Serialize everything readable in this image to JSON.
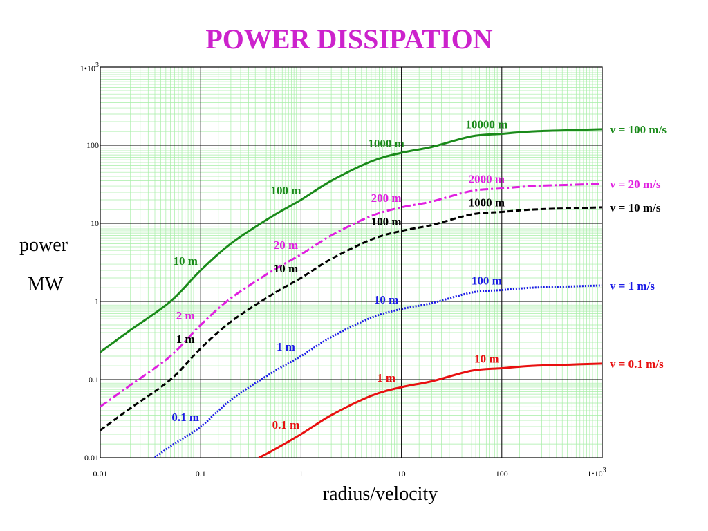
{
  "chart_data": {
    "type": "line",
    "title": "POWER DISSIPATION",
    "title_color": "#cc22cc",
    "xlabel": "radius/velocity",
    "ylabel_lines": [
      "power",
      "MW"
    ],
    "x_scale": "log",
    "y_scale": "log",
    "xlim": [
      0.01,
      1000
    ],
    "ylim": [
      0.01,
      1000
    ],
    "grid": true,
    "grid_minor_color": "#a6eea6",
    "grid_major_color": "#000000",
    "x_ticks": [
      {
        "value": 0.01,
        "label": "0.01"
      },
      {
        "value": 0.1,
        "label": "0.1"
      },
      {
        "value": 1,
        "label": "1"
      },
      {
        "value": 10,
        "label": "10"
      },
      {
        "value": 100,
        "label": "100"
      },
      {
        "value": 1000,
        "label": "1•10",
        "sup": "3"
      }
    ],
    "y_ticks": [
      {
        "value": 0.01,
        "label": "0.01"
      },
      {
        "value": 0.1,
        "label": "0.1"
      },
      {
        "value": 1,
        "label": "1"
      },
      {
        "value": 10,
        "label": "10"
      },
      {
        "value": 100,
        "label": "100"
      },
      {
        "value": 1000,
        "label": "1•10",
        "sup": "3"
      }
    ],
    "series": [
      {
        "name": "v = 100 m/s",
        "v": 100,
        "color": "#1a8a1a",
        "dash": "solid",
        "x": [
          0.01,
          0.02,
          0.05,
          0.1,
          0.2,
          0.5,
          1,
          2,
          5,
          10,
          20,
          50,
          100,
          200,
          500,
          1000
        ],
        "y": [
          0.225,
          0.43,
          1.0,
          2.5,
          5.5,
          12,
          20,
          35,
          62,
          80,
          95,
          130,
          140,
          150,
          156,
          160
        ],
        "annotations": [
          {
            "text": "10 m",
            "x": 0.1,
            "y": 2.5
          },
          {
            "text": "100 m",
            "x": 1,
            "y": 20
          },
          {
            "text": "1000 m",
            "x": 10,
            "y": 80
          },
          {
            "text": "10000 m",
            "x": 100,
            "y": 140
          }
        ]
      },
      {
        "name": "v = 20 m/s",
        "v": 20,
        "color": "#e020e0",
        "dash": "dashdot",
        "x": [
          0.01,
          0.02,
          0.05,
          0.1,
          0.2,
          0.5,
          1,
          2,
          5,
          10,
          20,
          50,
          100,
          200,
          500,
          1000
        ],
        "y": [
          0.045,
          0.085,
          0.2,
          0.5,
          1.1,
          2.4,
          4,
          7,
          12.4,
          16,
          19,
          26,
          28,
          30,
          31.2,
          32
        ],
        "annotations": [
          {
            "text": "2 m",
            "x": 0.1,
            "y": 0.5
          },
          {
            "text": "20 m",
            "x": 1,
            "y": 4
          },
          {
            "text": "200 m",
            "x": 10,
            "y": 16
          },
          {
            "text": "2000 m",
            "x": 100,
            "y": 28
          }
        ]
      },
      {
        "name": "v = 10 m/s",
        "v": 10,
        "color": "#000000",
        "dash": "dashed",
        "x": [
          0.01,
          0.02,
          0.05,
          0.1,
          0.2,
          0.5,
          1,
          2,
          5,
          10,
          20,
          50,
          100,
          200,
          500,
          1000
        ],
        "y": [
          0.0225,
          0.043,
          0.1,
          0.25,
          0.55,
          1.2,
          2,
          3.5,
          6.2,
          8,
          9.5,
          13,
          14,
          15,
          15.6,
          16
        ],
        "annotations": [
          {
            "text": "1 m",
            "x": 0.1,
            "y": 0.25
          },
          {
            "text": "10 m",
            "x": 1,
            "y": 2
          },
          {
            "text": "100 m",
            "x": 10,
            "y": 8
          },
          {
            "text": "1000 m",
            "x": 100,
            "y": 14
          }
        ]
      },
      {
        "name": "v = 1 m/s",
        "v": 1,
        "color": "#1a1ae6",
        "dash": "dotted",
        "x": [
          0.035,
          0.05,
          0.1,
          0.2,
          0.5,
          1,
          2,
          5,
          10,
          20,
          50,
          100,
          200,
          500,
          1000
        ],
        "y": [
          0.01,
          0.014,
          0.025,
          0.055,
          0.12,
          0.2,
          0.35,
          0.62,
          0.8,
          0.95,
          1.3,
          1.4,
          1.5,
          1.56,
          1.6
        ],
        "annotations": [
          {
            "text": "0.1 m",
            "x": 0.1,
            "y": 0.025
          },
          {
            "text": "1 m",
            "x": 1,
            "y": 0.2
          },
          {
            "text": "10 m",
            "x": 10,
            "y": 0.8
          },
          {
            "text": "100 m",
            "x": 100,
            "y": 1.4
          }
        ]
      },
      {
        "name": "v = 0.1 m/s",
        "v": 0.1,
        "color": "#e81010",
        "dash": "solid",
        "x": [
          0.38,
          0.5,
          1,
          2,
          5,
          10,
          20,
          50,
          100,
          200,
          500,
          1000
        ],
        "y": [
          0.01,
          0.012,
          0.02,
          0.035,
          0.062,
          0.08,
          0.095,
          0.13,
          0.14,
          0.15,
          0.156,
          0.16
        ],
        "annotations": [
          {
            "text": "0.1 m",
            "x": 1,
            "y": 0.02
          },
          {
            "text": "1 m",
            "x": 10,
            "y": 0.08
          },
          {
            "text": "10 m",
            "x": 100,
            "y": 0.14
          }
        ]
      }
    ]
  }
}
